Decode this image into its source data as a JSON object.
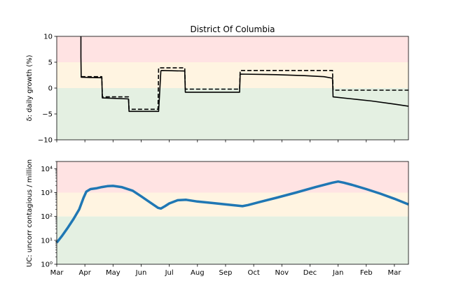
{
  "chart_data": [
    {
      "type": "line",
      "title": "District Of Columbia",
      "ylabel": "δ: daily growth (%)",
      "ylim": [
        -10,
        10
      ],
      "yticks": [
        -10,
        -5,
        0,
        5,
        10
      ],
      "ytick_labels": [
        "−10",
        "−5",
        "0",
        "5",
        "10"
      ],
      "xlim": [
        0,
        12.5
      ],
      "bands": [
        {
          "from": 5,
          "to": 10,
          "color": "#ffe3e3"
        },
        {
          "from": 0,
          "to": 5,
          "color": "#fff4e1"
        },
        {
          "from": -10,
          "to": 0,
          "color": "#e4f0e2"
        }
      ],
      "series": [
        {
          "style": "solid",
          "color": "#000000",
          "x": [
            0.86,
            0.86,
            0.87,
            1.6,
            1.62,
            2.55,
            2.57,
            3.6,
            3.62,
            3.7,
            3.72,
            4.55,
            4.57,
            6.5,
            6.52,
            7.8,
            8.8,
            9.5,
            9.8,
            9.82,
            10.5,
            11.2,
            12.0,
            12.5
          ],
          "y": [
            10,
            6,
            2.1,
            2.0,
            -1.9,
            -2.1,
            -4.5,
            -4.5,
            -4.5,
            3.3,
            3.4,
            3.3,
            -0.8,
            -0.8,
            2.7,
            2.6,
            2.4,
            2.2,
            1.9,
            -1.7,
            -2.1,
            -2.5,
            -3.1,
            -3.5
          ]
        },
        {
          "style": "dashed",
          "color": "#000000",
          "x": [
            0.87,
            1.6,
            1.62,
            2.55,
            2.57,
            3.6,
            3.62,
            3.72,
            4.55,
            4.57,
            6.5,
            6.52,
            9.8,
            9.82,
            12.5
          ],
          "y": [
            2.2,
            2.2,
            -1.7,
            -1.7,
            -4.1,
            -4.1,
            3.9,
            3.9,
            3.9,
            -0.2,
            -0.2,
            3.4,
            3.4,
            -0.4,
            -0.4
          ]
        }
      ]
    },
    {
      "type": "line",
      "title": "",
      "ylabel": "UC: uncorr contagious / million",
      "yscale": "log",
      "ylim": [
        1,
        20000
      ],
      "yticks": [
        1,
        10,
        100,
        1000,
        10000
      ],
      "ytick_labels": [
        "10⁰",
        "10¹",
        "10²",
        "10³",
        "10⁴"
      ],
      "xlim": [
        0,
        12.5
      ],
      "xtick_labels": [
        "Mar",
        "Apr",
        "May",
        "Jun",
        "Jul",
        "Aug",
        "Sep",
        "Oct",
        "Nov",
        "Dec",
        "Jan",
        "Feb",
        "Mar"
      ],
      "bands": [
        {
          "from": 1000,
          "to": 20000,
          "color": "#ffe3e3"
        },
        {
          "from": 100,
          "to": 1000,
          "color": "#fff4e1"
        },
        {
          "from": 1,
          "to": 100,
          "color": "#e4f0e2"
        }
      ],
      "series": [
        {
          "style": "solid",
          "color": "#1f77b4",
          "x": [
            0,
            0.2,
            0.4,
            0.6,
            0.8,
            0.95,
            1.05,
            1.2,
            1.4,
            1.6,
            1.8,
            2.0,
            2.3,
            2.7,
            3.0,
            3.3,
            3.6,
            3.7,
            3.85,
            4.0,
            4.3,
            4.6,
            5.0,
            5.5,
            6.0,
            6.6,
            6.8,
            7.2,
            7.8,
            8.5,
            9.2,
            9.8,
            10.0,
            10.2,
            10.5,
            11.0,
            11.5,
            12.0,
            12.5
          ],
          "y": [
            8,
            16,
            35,
            80,
            200,
            600,
            1100,
            1400,
            1500,
            1700,
            1850,
            1900,
            1700,
            1200,
            700,
            400,
            230,
            215,
            270,
            350,
            480,
            500,
            420,
            370,
            320,
            270,
            300,
            400,
            600,
            1000,
            1700,
            2600,
            2900,
            2600,
            2100,
            1400,
            900,
            550,
            320
          ]
        }
      ]
    }
  ]
}
